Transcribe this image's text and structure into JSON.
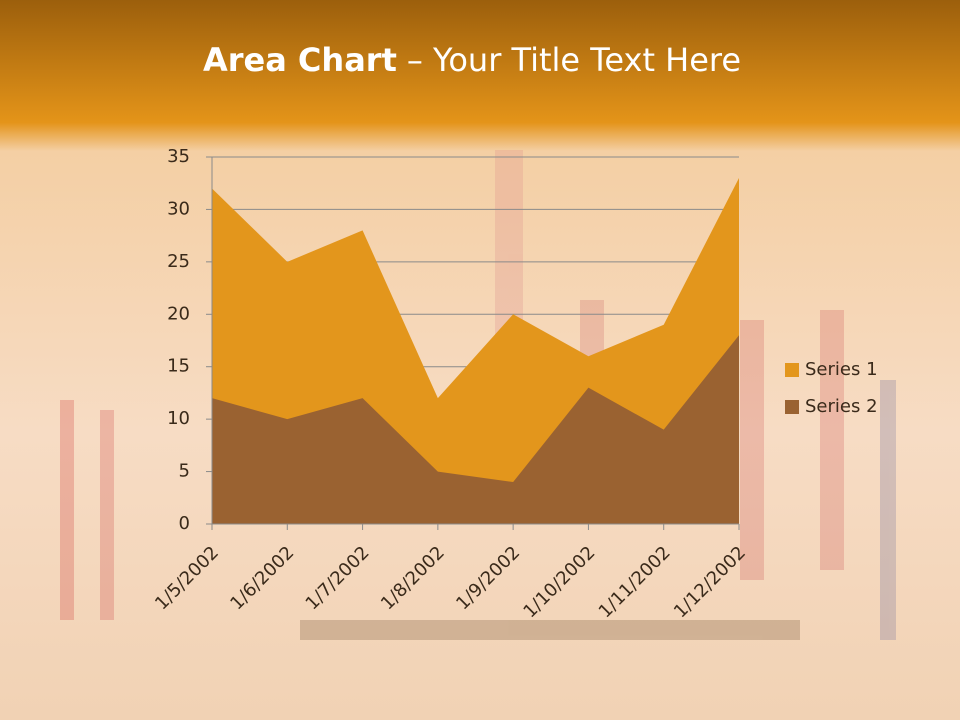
{
  "chart_data": {
    "type": "area",
    "title_bold": "Area Chart",
    "title": "– Your Title Text Here",
    "categories": [
      "1/5/2002",
      "1/6/2002",
      "1/7/2002",
      "1/8/2002",
      "1/9/2002",
      "1/10/2002",
      "1/11/2002",
      "1/12/2002"
    ],
    "series": [
      {
        "name": "Series 1",
        "color": "#e3961c",
        "values": [
          32,
          25,
          28,
          12,
          20,
          16,
          19,
          33
        ]
      },
      {
        "name": "Series 2",
        "color": "#9a6231",
        "values": [
          12,
          10,
          12,
          5,
          4,
          13,
          9,
          18
        ]
      }
    ],
    "ylim": [
      0,
      35
    ],
    "yticks": [
      0,
      5,
      10,
      15,
      20,
      25,
      30,
      35
    ],
    "grid": true,
    "legend": "right"
  }
}
